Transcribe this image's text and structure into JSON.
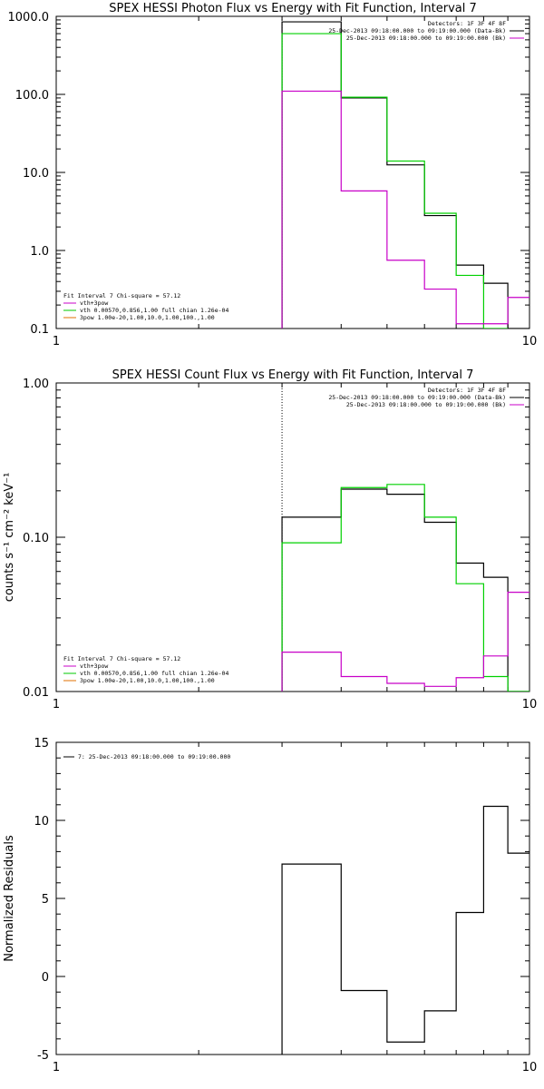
{
  "chart_data": [
    {
      "id": "photon",
      "type": "line",
      "title": "SPEX HESSI Photon Flux vs Energy with Fit Function, Interval 7",
      "ylabel": "",
      "xlim": [
        1,
        10
      ],
      "ylim": [
        0.1,
        1000
      ],
      "xscale": "log",
      "yscale": "log",
      "xticks": [
        {
          "v": 1,
          "label": "1"
        },
        {
          "v": 10,
          "label": "10"
        }
      ],
      "yticks": [
        {
          "v": 0.1,
          "label": "0.1"
        },
        {
          "v": 1,
          "label": "1.0"
        },
        {
          "v": 10,
          "label": "10.0"
        },
        {
          "v": 100,
          "label": "100.0"
        },
        {
          "v": 1000,
          "label": "1000.0"
        }
      ],
      "vline": 3.0,
      "legend_right": [
        "Detectors: 1F 3F 4F 8F",
        "25-Dec-2013 09:18:00.000 to 09:19:00.000 (Data-Bk)",
        "25-Dec-2013 09:18:00.000 to 09:19:00.000 (Bk)"
      ],
      "legend_left": [
        "Fit Interval  7    Chi-square = 57.12",
        "vth+3pow",
        "vth  0.00570,0.856,1.00   full chian 1.26e-04",
        "3pow  1.00e-20,1.00,10.0,1.00,100.,1.00"
      ],
      "legend_left_colors": [
        "#000000",
        "#c800c8",
        "#00c800",
        "#e07000"
      ],
      "series": [
        {
          "color": "#000000",
          "edges": [
            3,
            4,
            5,
            6,
            7,
            8,
            9
          ],
          "values": [
            850,
            90,
            12.5,
            2.8,
            0.65,
            0.38,
            0.1
          ]
        },
        {
          "color": "#00d000",
          "edges": [
            3,
            4,
            5,
            6,
            7,
            8,
            9
          ],
          "values": [
            600,
            92,
            14,
            3.0,
            0.48,
            0.1
          ]
        },
        {
          "color": "#c800c8",
          "edges": [
            3,
            4,
            5,
            6,
            7,
            8,
            9,
            10
          ],
          "values": [
            110,
            5.8,
            0.75,
            0.32,
            0.115,
            0.115,
            0.25
          ]
        }
      ]
    },
    {
      "id": "count",
      "type": "line",
      "title": "SPEX HESSI Count Flux vs Energy with Fit Function, Interval 7",
      "ylabel": "counts s⁻¹ cm⁻² keV⁻¹",
      "xlim": [
        1,
        10
      ],
      "ylim": [
        0.01,
        1.0
      ],
      "xscale": "log",
      "yscale": "log",
      "xticks": [
        {
          "v": 1,
          "label": "1"
        },
        {
          "v": 10,
          "label": "10"
        }
      ],
      "yticks": [
        {
          "v": 0.01,
          "label": "0.01"
        },
        {
          "v": 0.1,
          "label": "0.10"
        },
        {
          "v": 1,
          "label": "1.00"
        }
      ],
      "vline": 3.0,
      "legend_right": [
        "Detectors: 1F 3F 4F 8F",
        "25-Dec-2013 09:18:00.000 to 09:19:00.000 (Data-Bk)",
        "25-Dec-2013 09:18:00.000 to 09:19:00.000 (Bk)"
      ],
      "legend_left": [
        "Fit Interval  7    Chi-square = 57.12",
        "vth+3pow",
        "vth  0.00570,0.856,1.00   full chian 1.26e-04",
        "3pow  1.00e-20,1.00,10.0,1.00,100.,1.00"
      ],
      "legend_left_colors": [
        "#000000",
        "#c800c8",
        "#00c800",
        "#e07000"
      ],
      "series": [
        {
          "color": "#000000",
          "edges": [
            3,
            4,
            5,
            6,
            7,
            8,
            9
          ],
          "values": [
            0.135,
            0.205,
            0.19,
            0.125,
            0.068,
            0.055,
            0.01
          ]
        },
        {
          "color": "#00d000",
          "edges": [
            3,
            4,
            5,
            6,
            7,
            8,
            9
          ],
          "values": [
            0.092,
            0.21,
            0.22,
            0.135,
            0.05,
            0.0125,
            0.01
          ]
        },
        {
          "color": "#c800c8",
          "edges": [
            3,
            4,
            5,
            6,
            7,
            8,
            9,
            10
          ],
          "values": [
            0.018,
            0.0125,
            0.0113,
            0.0108,
            0.0123,
            0.017,
            0.044
          ]
        }
      ]
    },
    {
      "id": "resid",
      "type": "line",
      "title": "",
      "ylabel": "Normalized Residuals",
      "xlim": [
        1,
        10
      ],
      "ylim": [
        -5,
        15
      ],
      "xscale": "log",
      "yscale": "linear",
      "xticks": [
        {
          "v": 1,
          "label": "1"
        },
        {
          "v": 10,
          "label": "10"
        }
      ],
      "yticks": [
        {
          "v": -5,
          "label": "-5"
        },
        {
          "v": 0,
          "label": "0"
        },
        {
          "v": 5,
          "label": "5"
        },
        {
          "v": 10,
          "label": "10"
        },
        {
          "v": 15,
          "label": "15"
        }
      ],
      "legend_left_top": "7: 25-Dec-2013 09:18:00.000 to 09:19:00.000",
      "series": [
        {
          "color": "#000000",
          "edges": [
            3,
            4,
            5,
            6,
            7,
            8,
            9,
            10
          ],
          "values": [
            7.2,
            -0.9,
            -4.2,
            -2.2,
            4.1,
            10.9,
            7.9
          ]
        }
      ]
    }
  ]
}
